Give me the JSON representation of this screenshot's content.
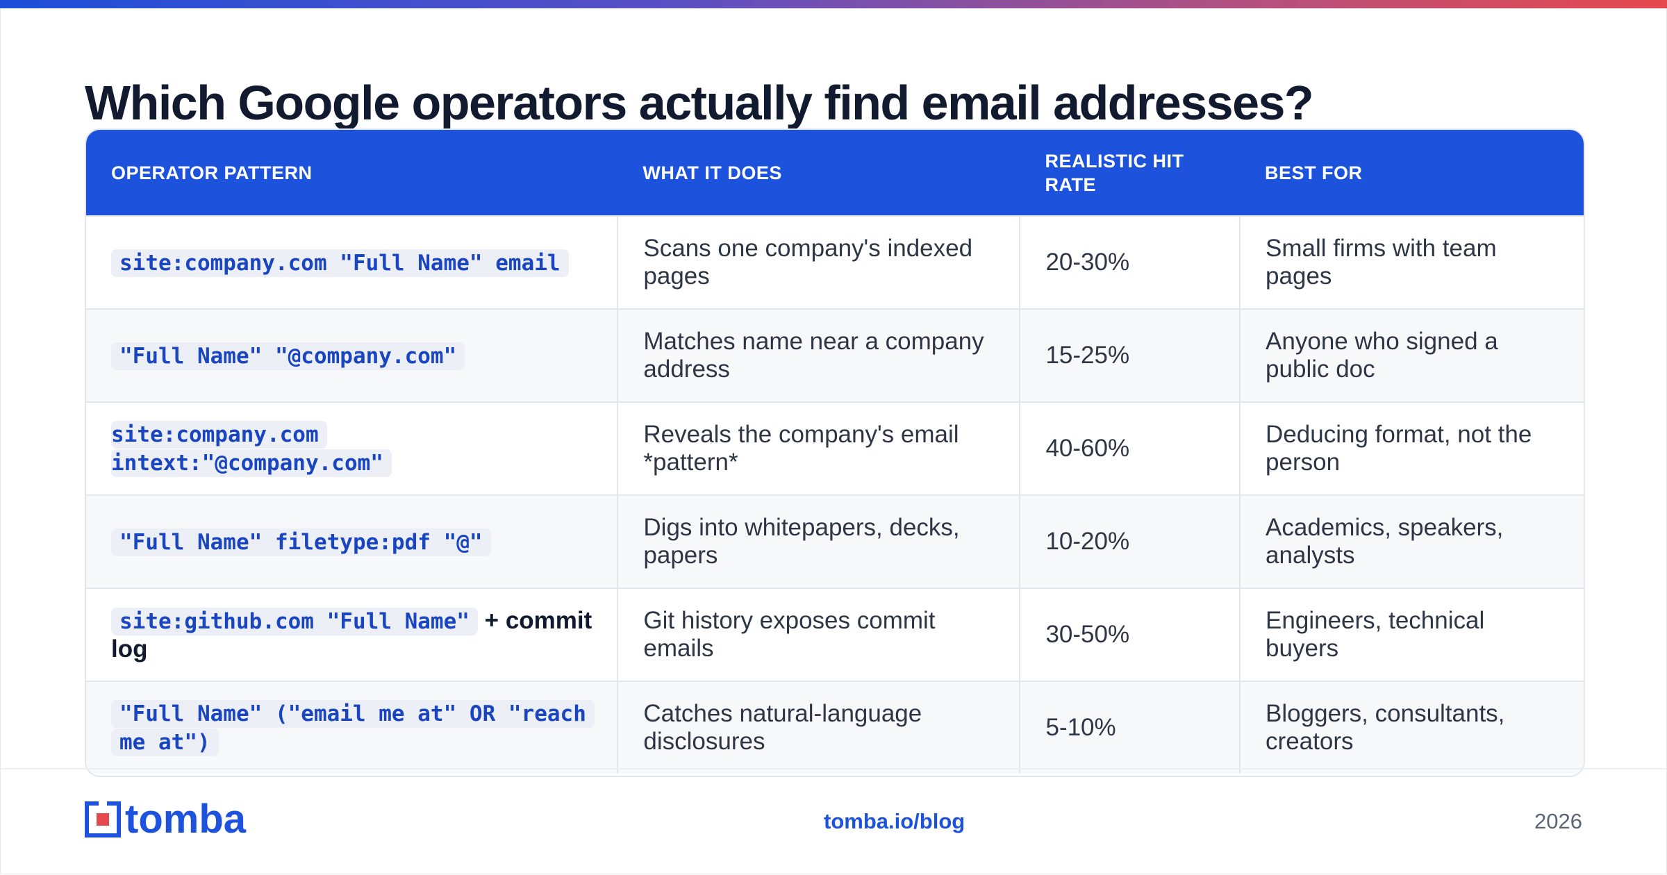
{
  "title": "Which Google operators actually find email addresses?",
  "table": {
    "headers": [
      "OPERATOR PATTERN",
      "WHAT IT DOES",
      "REALISTIC HIT RATE",
      "BEST FOR"
    ],
    "rows": [
      {
        "operator": "site:company.com \"Full Name\" email",
        "suffix": "",
        "does": "Scans one company's indexed pages",
        "rate": "20-30%",
        "best": "Small firms with team pages"
      },
      {
        "operator": "\"Full Name\" \"@company.com\"",
        "suffix": "",
        "does": "Matches name near a company address",
        "rate": "15-25%",
        "best": "Anyone who signed a public doc"
      },
      {
        "operator": "site:company.com intext:\"@company.com\"",
        "suffix": "",
        "does": "Reveals the company's email *pattern*",
        "rate": "40-60%",
        "best": "Deducing format, not the person"
      },
      {
        "operator": "\"Full Name\" filetype:pdf \"@\"",
        "suffix": "",
        "does": "Digs into whitepapers, decks, papers",
        "rate": "10-20%",
        "best": "Academics, speakers, analysts"
      },
      {
        "operator": "site:github.com \"Full Name\"",
        "suffix": "+ commit log",
        "does": "Git history exposes commit emails",
        "rate": "30-50%",
        "best": "Engineers, technical buyers"
      },
      {
        "operator": "\"Full Name\" (\"email me at\" OR \"reach me at\")",
        "suffix": "",
        "does": "Catches natural-language disclosures",
        "rate": "5-10%",
        "best": "Bloggers, consultants, creators"
      }
    ]
  },
  "footer": {
    "brand": "tomba",
    "link": "tomba.io/blog",
    "year": "2026"
  },
  "colors": {
    "accent": "#1c52dc",
    "title": "#111a2e",
    "code_bg": "#eceff6"
  }
}
